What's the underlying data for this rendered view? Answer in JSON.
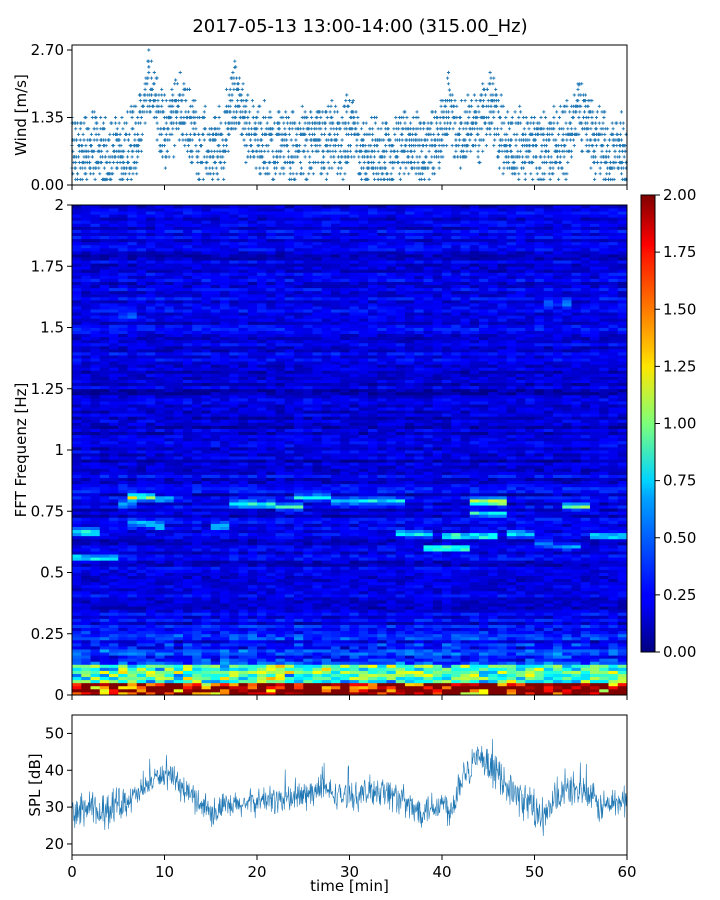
{
  "title": "2017-05-13 13:00-14:00 (315.00_Hz)",
  "chart_data": [
    {
      "type": "scatter",
      "name": "wind",
      "ylabel": "Wind [m/s]",
      "ylim": [
        0,
        2.8
      ],
      "xlim": [
        0,
        60
      ],
      "yticks": [
        0.0,
        1.35,
        2.7
      ],
      "ytick_labels": [
        "0.00",
        "1.35",
        "2.70"
      ],
      "marker": "+",
      "color": "#1f77b4",
      "sample_step_min": 0.1,
      "anchors_x": [
        0,
        2,
        4,
        6,
        7.5,
        8.5,
        9.5,
        11,
        12.5,
        14,
        15.5,
        17,
        18.5,
        20,
        22,
        24,
        26,
        28,
        30,
        32,
        34,
        36,
        38,
        40,
        42,
        43.5,
        45,
        46.5,
        48,
        50,
        52,
        54,
        55.5,
        57,
        58.5,
        60
      ],
      "anchors_level": [
        0.65,
        0.75,
        0.6,
        0.75,
        1.0,
        1.5,
        1.1,
        0.9,
        1.3,
        0.8,
        0.7,
        1.0,
        1.2,
        0.9,
        0.8,
        0.75,
        0.85,
        0.9,
        0.7,
        0.6,
        0.65,
        0.8,
        0.7,
        0.9,
        1.0,
        1.1,
        1.3,
        1.0,
        0.85,
        0.8,
        0.75,
        1.0,
        1.2,
        0.9,
        0.6,
        0.7
      ],
      "peaks": [
        {
          "x": 8.3,
          "y": 2.7
        },
        {
          "x": 11.2,
          "y": 2.1
        },
        {
          "x": 17.6,
          "y": 2.35
        },
        {
          "x": 30.3,
          "y": 1.65
        },
        {
          "x": 40.8,
          "y": 1.9
        },
        {
          "x": 45.3,
          "y": 1.8
        },
        {
          "x": 54.8,
          "y": 2.0
        }
      ]
    },
    {
      "type": "heatmap",
      "name": "spectrogram",
      "ylabel": "FFT Frequenz [Hz]",
      "ylim": [
        0,
        2
      ],
      "xlim": [
        0,
        60
      ],
      "yticks": [
        0,
        0.25,
        0.5,
        0.75,
        1,
        1.25,
        1.5,
        1.75,
        2
      ],
      "ytick_labels": [
        "0",
        "0.25",
        "0.5",
        "0.75",
        "1",
        "1.25",
        "1.5",
        "1.75",
        "2"
      ],
      "colormap": "jet",
      "color_range": [
        0,
        2
      ],
      "colorbar_ticks": [
        "0.00",
        "0.25",
        "0.50",
        "0.75",
        "1.00",
        "1.25",
        "1.50",
        "1.75",
        "2.00"
      ],
      "freq_resolution_hz": 0.0125,
      "time_resolution_min": 1,
      "background_level": 0.2,
      "bands": [
        {
          "t0": 0,
          "t1": 3,
          "f": 0.665,
          "level": 1.0
        },
        {
          "t0": 0,
          "t1": 5,
          "f": 0.56,
          "level": 0.7
        },
        {
          "t0": 5,
          "t1": 7,
          "f": 0.78,
          "level": 0.6
        },
        {
          "t0": 5,
          "t1": 7,
          "f": 1.55,
          "level": 0.55
        },
        {
          "t0": 6,
          "t1": 9,
          "f": 0.81,
          "level": 1.2
        },
        {
          "t0": 9,
          "t1": 11,
          "f": 0.8,
          "level": 0.75
        },
        {
          "t0": 6,
          "t1": 9,
          "f": 0.7,
          "level": 0.7
        },
        {
          "t0": 9,
          "t1": 10,
          "f": 0.69,
          "level": 0.9
        },
        {
          "t0": 15,
          "t1": 17,
          "f": 0.69,
          "level": 0.75
        },
        {
          "t0": 17,
          "t1": 22,
          "f": 0.78,
          "level": 0.8
        },
        {
          "t0": 22,
          "t1": 25,
          "f": 0.77,
          "level": 0.9
        },
        {
          "t0": 24,
          "t1": 28,
          "f": 0.81,
          "level": 0.85
        },
        {
          "t0": 28,
          "t1": 36,
          "f": 0.79,
          "level": 0.75
        },
        {
          "t0": 35,
          "t1": 39,
          "f": 0.66,
          "level": 0.8
        },
        {
          "t0": 38,
          "t1": 43,
          "f": 0.6,
          "level": 0.95
        },
        {
          "t0": 40,
          "t1": 46,
          "f": 0.65,
          "level": 0.9
        },
        {
          "t0": 43,
          "t1": 47,
          "f": 0.79,
          "level": 1.45
        },
        {
          "t0": 43,
          "t1": 47,
          "f": 0.74,
          "level": 0.85
        },
        {
          "t0": 47,
          "t1": 50,
          "f": 0.66,
          "level": 0.75
        },
        {
          "t0": 50,
          "t1": 52,
          "f": 0.62,
          "level": 0.6
        },
        {
          "t0": 52,
          "t1": 55,
          "f": 0.61,
          "level": 0.6
        },
        {
          "t0": 53,
          "t1": 56,
          "f": 0.77,
          "level": 1.0
        },
        {
          "t0": 56,
          "t1": 60,
          "f": 0.65,
          "level": 0.75
        },
        {
          "t0": 51,
          "t1": 54,
          "f": 1.6,
          "level": 0.5
        }
      ],
      "low_freq_max_level": 2.0
    },
    {
      "type": "line",
      "name": "spl",
      "xlabel": "time [min]",
      "ylabel": "SPL [dB]",
      "xlim": [
        0,
        60
      ],
      "ylim": [
        17,
        55
      ],
      "xticks": [
        0,
        10,
        20,
        30,
        40,
        50,
        60
      ],
      "yticks": [
        20,
        30,
        40,
        50
      ],
      "color": "#1f77b4",
      "sample_step_min": 0.05,
      "envelope_x": [
        0,
        1.5,
        3,
        5,
        7,
        9,
        10,
        11,
        13,
        15,
        17,
        19,
        21,
        23,
        25,
        27,
        29,
        31,
        33,
        35,
        37,
        38.5,
        40,
        41,
        42,
        43.5,
        45,
        46.5,
        48,
        49.5,
        51,
        52.5,
        54,
        55.5,
        57,
        58.5,
        60
      ],
      "envelope_mean": [
        27,
        30,
        28,
        31,
        33,
        38,
        39,
        37,
        33,
        29,
        30,
        31,
        32,
        32,
        33,
        35,
        33,
        33,
        35,
        33,
        29,
        30,
        31,
        29,
        38,
        43,
        41,
        38,
        33,
        31,
        26,
        33,
        35,
        34,
        30,
        31,
        32
      ],
      "envelope_spread": [
        5,
        6,
        5,
        5,
        4,
        3,
        4,
        4,
        4,
        5,
        4,
        4,
        4,
        5,
        5,
        4,
        4,
        4,
        5,
        5,
        5,
        5,
        5,
        5,
        6,
        5,
        5,
        5,
        5,
        6,
        6,
        5,
        5,
        5,
        5,
        5,
        5
      ]
    }
  ]
}
